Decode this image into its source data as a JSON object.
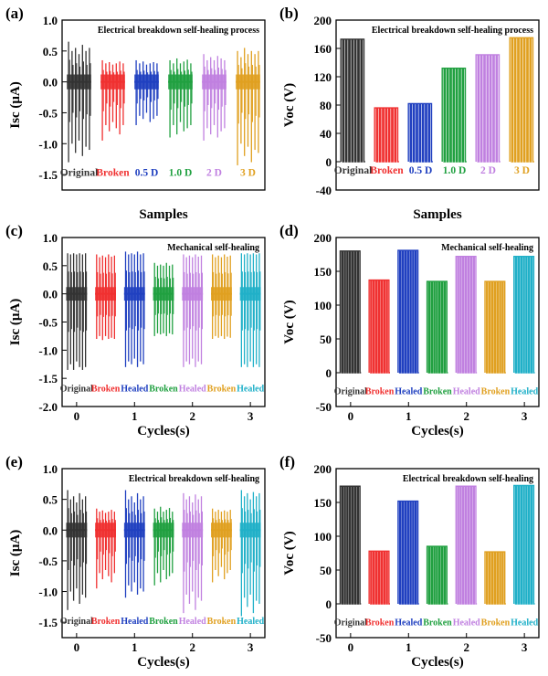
{
  "figure": {
    "colors": {
      "black": "#000000"
    }
  },
  "chart_data": [
    {
      "panel_label": "(a)",
      "type": "line",
      "title": "Electrical breakdown self-healing process",
      "ylabel": "Isc (μA)",
      "xlabel": "Samples",
      "ylim": [
        -1.75,
        1.0
      ],
      "yticks": [
        1.0,
        0.5,
        0.0,
        -0.5,
        -1.0,
        -1.5
      ],
      "ytick_labels": [
        "1.0",
        "0.5",
        "0.0",
        "-0.5",
        "-1.0",
        "-1.5"
      ],
      "xticks": [],
      "xtick_labels": [],
      "group_label_value": -1.45,
      "series": [
        {
          "name": "Original",
          "color": "#333333",
          "center": 0.0,
          "pos": [
            0.65,
            0.5,
            0.55,
            0.45,
            0.6,
            0.5,
            0.55
          ],
          "neg": [
            -1.3,
            -1.0,
            -1.15,
            -0.95,
            -1.2,
            -1.05,
            -1.1
          ]
        },
        {
          "name": "Broken",
          "color": "#f03030",
          "center": 0.0,
          "pos": [
            0.35,
            0.3,
            0.32,
            0.28,
            0.3,
            0.33,
            0.3
          ],
          "neg": [
            -0.95,
            -0.7,
            -0.8,
            -0.65,
            -0.75,
            -0.85,
            -0.7
          ]
        },
        {
          "name": "0.5 D",
          "color": "#2040c0",
          "center": 0.0,
          "pos": [
            0.35,
            0.3,
            0.33,
            0.28,
            0.3,
            0.32,
            0.3
          ],
          "neg": [
            -0.7,
            -0.55,
            -0.6,
            -0.5,
            -0.65,
            -0.6,
            -0.55
          ]
        },
        {
          "name": "1.0 D",
          "color": "#20a040",
          "center": 0.0,
          "pos": [
            0.35,
            0.3,
            0.38,
            0.3,
            0.33,
            0.36,
            0.3
          ],
          "neg": [
            -0.9,
            -0.7,
            -0.85,
            -0.65,
            -0.8,
            -0.75,
            -0.7
          ]
        },
        {
          "name": "2 D",
          "color": "#c080e0",
          "center": 0.0,
          "pos": [
            0.45,
            0.35,
            0.4,
            0.35,
            0.42,
            0.38,
            0.35
          ],
          "neg": [
            -0.95,
            -0.75,
            -0.85,
            -0.7,
            -0.9,
            -0.8,
            -0.75
          ]
        },
        {
          "name": "3 D",
          "color": "#e0a020",
          "center": 0.0,
          "pos": [
            0.5,
            0.4,
            0.55,
            0.45,
            0.5,
            0.45,
            0.5
          ],
          "neg": [
            -1.35,
            -1.0,
            -1.2,
            -1.05,
            -1.3,
            -1.1,
            -1.15
          ]
        }
      ]
    },
    {
      "panel_label": "(b)",
      "type": "line",
      "title": "Electrical breakdown self-healing process",
      "ylabel": "Voc (V)",
      "xlabel": "Samples",
      "ylim": [
        -40,
        200
      ],
      "yticks": [
        200,
        160,
        120,
        80,
        40,
        0,
        -40
      ],
      "ytick_labels": [
        "200",
        "160",
        "120",
        "80",
        "40",
        "0",
        "-40"
      ],
      "xticks": [],
      "xtick_labels": [],
      "group_label_value": -10,
      "series": [
        {
          "name": "Original",
          "color": "#333333",
          "center": 0,
          "level": 173,
          "count": 8
        },
        {
          "name": "Broken",
          "color": "#f03030",
          "center": 0,
          "level": 76,
          "count": 8
        },
        {
          "name": "0.5 D",
          "color": "#2040c0",
          "center": 0,
          "level": 82,
          "count": 8
        },
        {
          "name": "1.0 D",
          "color": "#20a040",
          "center": 0,
          "level": 132,
          "count": 8
        },
        {
          "name": "2 D",
          "color": "#c080e0",
          "center": 0,
          "level": 151,
          "count": 8
        },
        {
          "name": "3 D",
          "color": "#e0a020",
          "center": 0,
          "level": 175,
          "count": 8
        }
      ]
    },
    {
      "panel_label": "(c)",
      "type": "line",
      "title": "Mechanical self-healing",
      "ylabel": "Isc (μA)",
      "xlabel": "Cycles(s)",
      "ylim": [
        -2.0,
        1.0
      ],
      "yticks": [
        1.0,
        0.5,
        0.0,
        -0.5,
        -1.0,
        -1.5,
        -2.0
      ],
      "ytick_labels": [
        "1.0",
        "0.5",
        "0.0",
        "-0.5",
        "-1.0",
        "-1.5",
        "-2.0"
      ],
      "xticks": [
        0,
        1,
        2,
        3
      ],
      "xtick_labels": [
        "0",
        "1",
        "2",
        "3"
      ],
      "group_label_value": -1.65,
      "series": [
        {
          "name": "Original",
          "color": "#333333",
          "center": 0.0,
          "pos": [
            0.72,
            0.7,
            0.72,
            0.7,
            0.72,
            0.7,
            0.72
          ],
          "neg": [
            -1.35,
            -1.25,
            -1.35,
            -1.2,
            -1.3,
            -1.35,
            -1.3
          ]
        },
        {
          "name": "Broken",
          "color": "#f03030",
          "center": 0.0,
          "pos": [
            0.7,
            0.65,
            0.68,
            0.65,
            0.7,
            0.66,
            0.68
          ],
          "neg": [
            -0.8,
            -0.75,
            -0.82,
            -0.75,
            -0.8,
            -0.78,
            -0.8
          ]
        },
        {
          "name": "Healed",
          "color": "#2040c0",
          "center": 0.0,
          "pos": [
            0.75,
            0.7,
            0.72,
            0.7,
            0.75,
            0.7,
            0.72
          ],
          "neg": [
            -1.3,
            -1.2,
            -1.25,
            -1.15,
            -1.3,
            -1.2,
            -1.25
          ]
        },
        {
          "name": "Broken",
          "color": "#20a040",
          "center": 0.0,
          "pos": [
            0.55,
            0.5,
            0.52,
            0.5,
            0.55,
            0.5,
            0.52
          ],
          "neg": [
            -0.75,
            -0.7,
            -0.72,
            -0.7,
            -0.75,
            -0.7,
            -0.72
          ]
        },
        {
          "name": "Healed",
          "color": "#c080e0",
          "center": 0.0,
          "pos": [
            0.7,
            0.65,
            0.68,
            0.65,
            0.7,
            0.66,
            0.68
          ],
          "neg": [
            -1.3,
            -1.2,
            -1.25,
            -1.15,
            -1.3,
            -1.2,
            -1.25
          ]
        },
        {
          "name": "Broken",
          "color": "#e0a020",
          "center": 0.0,
          "pos": [
            0.7,
            0.65,
            0.68,
            0.65,
            0.7,
            0.66,
            0.68
          ],
          "neg": [
            -0.8,
            -0.75,
            -0.78,
            -0.75,
            -0.8,
            -0.76,
            -0.78
          ]
        },
        {
          "name": "Healed",
          "color": "#20b0c8",
          "center": 0.0,
          "pos": [
            0.72,
            0.7,
            0.72,
            0.7,
            0.72,
            0.7,
            0.72
          ],
          "neg": [
            -1.3,
            -1.25,
            -1.3,
            -1.2,
            -1.3,
            -1.25,
            -1.3
          ]
        }
      ]
    },
    {
      "panel_label": "(d)",
      "type": "line",
      "title": "Mechanical self-healing",
      "ylabel": "Voc (V)",
      "xlabel": "Cycles(s)",
      "ylim": [
        -50,
        200
      ],
      "yticks": [
        200,
        150,
        100,
        50,
        0,
        -50
      ],
      "ytick_labels": [
        "200",
        "150",
        "100",
        "50",
        "0",
        "-50"
      ],
      "xticks": [
        0,
        1,
        2,
        3
      ],
      "xtick_labels": [
        "0",
        "1",
        "2",
        "3"
      ],
      "group_label_value": -25,
      "series": [
        {
          "name": "Original",
          "color": "#333333",
          "center": 0,
          "level": 180,
          "count": 8
        },
        {
          "name": "Broken",
          "color": "#f03030",
          "center": 0,
          "level": 137,
          "count": 8
        },
        {
          "name": "Healed",
          "color": "#2040c0",
          "center": 0,
          "level": 181,
          "count": 8
        },
        {
          "name": "Broken",
          "color": "#20a040",
          "center": 0,
          "level": 135,
          "count": 8
        },
        {
          "name": "Healed",
          "color": "#c080e0",
          "center": 0,
          "level": 172,
          "count": 8
        },
        {
          "name": "Broken",
          "color": "#e0a020",
          "center": 0,
          "level": 135,
          "count": 8
        },
        {
          "name": "Healed",
          "color": "#20b0c8",
          "center": 0,
          "level": 172,
          "count": 8
        }
      ]
    },
    {
      "panel_label": "(e)",
      "type": "line",
      "title": "Electrical breakdown self-healing",
      "ylabel": "Isc (μA)",
      "xlabel": "Cycles(s)",
      "ylim": [
        -1.75,
        1.0
      ],
      "yticks": [
        1.0,
        0.5,
        0.0,
        -0.5,
        -1.0,
        -1.5
      ],
      "ytick_labels": [
        "1.0",
        "0.5",
        "0.0",
        "-0.5",
        "-1.0",
        "-1.5"
      ],
      "xticks": [
        0,
        1,
        2,
        3
      ],
      "xtick_labels": [
        "0",
        "1",
        "2",
        "3"
      ],
      "group_label_value": -1.45,
      "series": [
        {
          "name": "Original",
          "color": "#333333",
          "center": 0.0,
          "pos": [
            0.65,
            0.5,
            0.55,
            0.45,
            0.6,
            0.5,
            0.55
          ],
          "neg": [
            -1.3,
            -1.0,
            -1.15,
            -0.95,
            -1.2,
            -1.05,
            -1.1
          ]
        },
        {
          "name": "Broken",
          "color": "#f03030",
          "center": 0.0,
          "pos": [
            0.35,
            0.3,
            0.32,
            0.28,
            0.3,
            0.33,
            0.3
          ],
          "neg": [
            -0.95,
            -0.7,
            -0.8,
            -0.65,
            -0.75,
            -0.85,
            -0.7
          ]
        },
        {
          "name": "Healed",
          "color": "#2040c0",
          "center": 0.0,
          "pos": [
            0.65,
            0.5,
            0.55,
            0.45,
            0.6,
            0.5,
            0.55
          ],
          "neg": [
            -1.1,
            -0.9,
            -1.0,
            -0.85,
            -1.05,
            -0.95,
            -1.0
          ]
        },
        {
          "name": "Broken",
          "color": "#20a040",
          "center": 0.0,
          "pos": [
            0.35,
            0.3,
            0.38,
            0.3,
            0.33,
            0.36,
            0.3
          ],
          "neg": [
            -0.9,
            -0.7,
            -0.85,
            -0.65,
            -0.8,
            -0.75,
            -0.7
          ]
        },
        {
          "name": "Healed",
          "color": "#c080e0",
          "center": 0.0,
          "pos": [
            0.6,
            0.5,
            0.55,
            0.45,
            0.58,
            0.5,
            0.55
          ],
          "neg": [
            -1.35,
            -1.05,
            -1.2,
            -1.0,
            -1.3,
            -1.1,
            -1.15
          ]
        },
        {
          "name": "Broken",
          "color": "#e0a020",
          "center": 0.0,
          "pos": [
            0.35,
            0.3,
            0.33,
            0.3,
            0.32,
            0.3,
            0.33
          ],
          "neg": [
            -0.85,
            -0.65,
            -0.75,
            -0.6,
            -0.8,
            -0.7,
            -0.65
          ]
        },
        {
          "name": "Healed",
          "color": "#20b0c8",
          "center": 0.0,
          "pos": [
            0.65,
            0.55,
            0.6,
            0.5,
            0.62,
            0.55,
            0.6
          ],
          "neg": [
            -1.4,
            -1.1,
            -1.25,
            -1.05,
            -1.35,
            -1.15,
            -1.2
          ]
        }
      ]
    },
    {
      "panel_label": "(f)",
      "type": "line",
      "title": "Electrical breakdown self-healing",
      "ylabel": "Voc (V)",
      "xlabel": "Cycles(s)",
      "ylim": [
        -50,
        200
      ],
      "yticks": [
        200,
        150,
        100,
        50,
        0,
        -50
      ],
      "ytick_labels": [
        "200",
        "150",
        "100",
        "50",
        "0",
        "-50"
      ],
      "xticks": [
        0,
        1,
        2,
        3
      ],
      "xtick_labels": [
        "0",
        "1",
        "2",
        "3"
      ],
      "group_label_value": -25,
      "series": [
        {
          "name": "Original",
          "color": "#333333",
          "center": 0,
          "level": 174,
          "count": 8
        },
        {
          "name": "Broken",
          "color": "#f03030",
          "center": 0,
          "level": 78,
          "count": 8
        },
        {
          "name": "Healed",
          "color": "#2040c0",
          "center": 0,
          "level": 152,
          "count": 8
        },
        {
          "name": "Broken",
          "color": "#20a040",
          "center": 0,
          "level": 85,
          "count": 8
        },
        {
          "name": "Healed",
          "color": "#c080e0",
          "center": 0,
          "level": 174,
          "count": 8
        },
        {
          "name": "Broken",
          "color": "#e0a020",
          "center": 0,
          "level": 77,
          "count": 8
        },
        {
          "name": "Healed",
          "color": "#20b0c8",
          "center": 0,
          "level": 175,
          "count": 8
        }
      ]
    }
  ]
}
